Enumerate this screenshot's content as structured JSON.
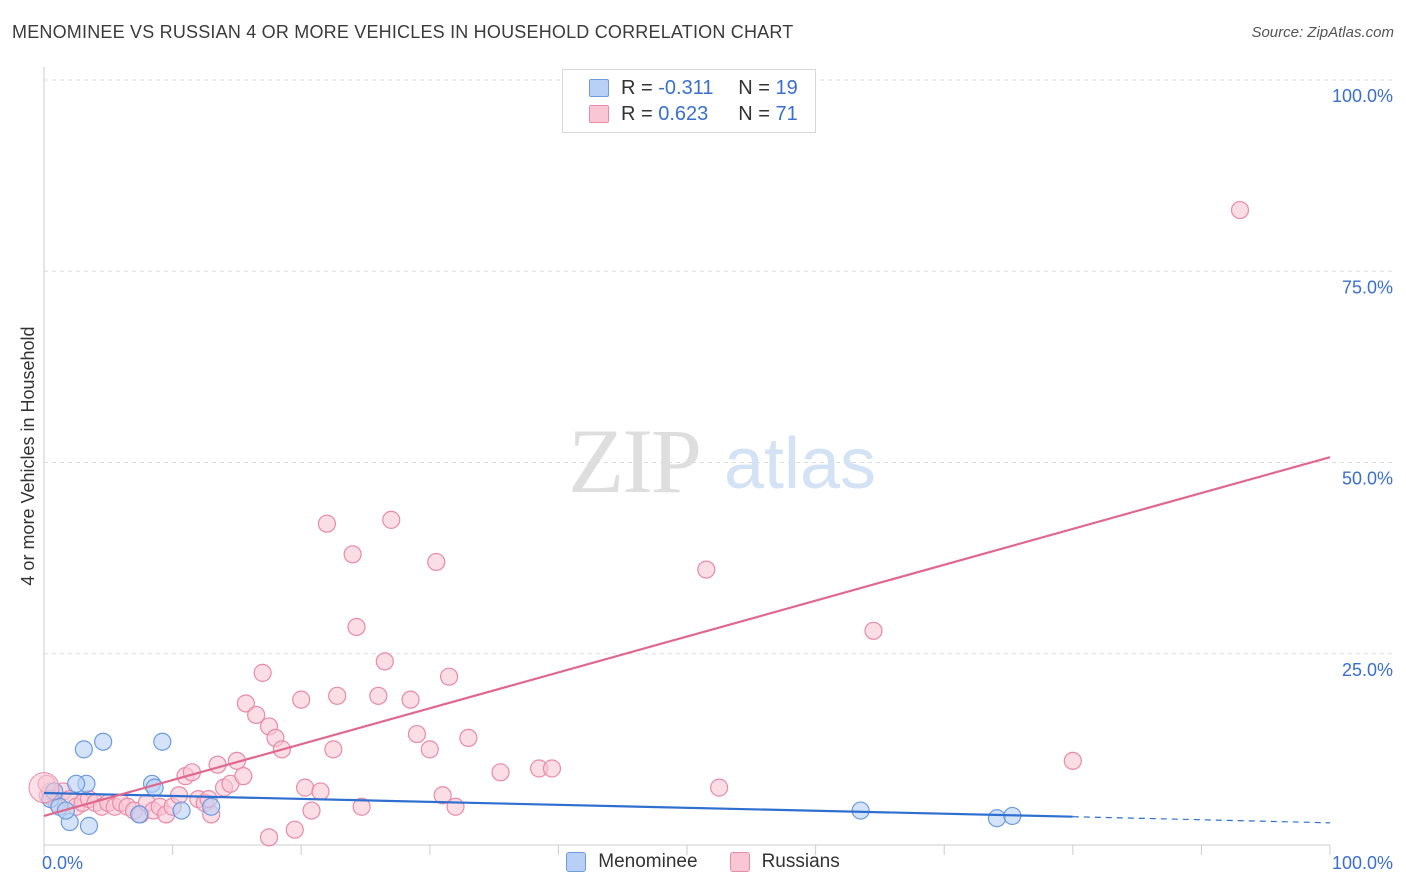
{
  "header": {
    "title": "MENOMINEE VS RUSSIAN 4 OR MORE VEHICLES IN HOUSEHOLD CORRELATION CHART",
    "source": "Source: ZipAtlas.com"
  },
  "watermark": {
    "zip": "ZIP",
    "atlas": "atlas"
  },
  "stats": [
    {
      "r_label": "R =",
      "r_value": "-0.311",
      "n_label": "N =",
      "n_value": "19"
    },
    {
      "r_label": "R =",
      "r_value": "0.623",
      "n_label": "N =",
      "n_value": "71"
    }
  ],
  "colors": {
    "menominee_fill": "#b8d0f5",
    "menominee_stroke": "#6d9be0",
    "menominee_line": "#2f6fcf",
    "russians_fill": "#f9c6d5",
    "russians_stroke": "#e98aa8",
    "russians_line": "#e0688f",
    "tick_label": "#3a6fd0",
    "grid": "#dddddd"
  },
  "chart_data": {
    "type": "scatter",
    "title": "MENOMINEE VS RUSSIAN 4 OR MORE VEHICLES IN HOUSEHOLD CORRELATION CHART",
    "xlabel": "",
    "ylabel": "4 or more Vehicles in Household",
    "xlim": [
      0,
      100
    ],
    "ylim": [
      0,
      100
    ],
    "x_tick_labels": [
      "0.0%",
      "100.0%"
    ],
    "y_tick_labels": [
      "25.0%",
      "50.0%",
      "75.0%",
      "100.0%"
    ],
    "y_ticks": [
      25,
      50,
      75,
      100
    ],
    "grid": "horizontal dashed",
    "legend_position": "top-center",
    "series": [
      {
        "name": "Menominee",
        "points": [
          [
            0.5,
            6.0
          ],
          [
            1.2,
            5.0
          ],
          [
            2.0,
            3.0
          ],
          [
            3.3,
            8.0
          ],
          [
            3.1,
            12.5
          ],
          [
            4.6,
            13.5
          ],
          [
            3.5,
            2.5
          ],
          [
            8.4,
            8.0
          ],
          [
            8.6,
            7.5
          ],
          [
            9.2,
            13.5
          ],
          [
            7.4,
            4.0
          ],
          [
            10.7,
            4.5
          ],
          [
            13.0,
            5.0
          ],
          [
            1.7,
            4.5
          ],
          [
            2.5,
            8.0
          ],
          [
            63.5,
            4.5
          ],
          [
            74.1,
            3.5
          ],
          [
            75.3,
            3.8
          ],
          [
            0.8,
            7.0
          ]
        ],
        "trend": {
          "x": [
            0,
            80
          ],
          "y": [
            6.8,
            3.7
          ],
          "dashed_to": [
            100,
            2.9
          ]
        }
      },
      {
        "name": "Russians",
        "points": [
          [
            0.3,
            6.5
          ],
          [
            0.5,
            7.0
          ],
          [
            1.0,
            5.5
          ],
          [
            1.5,
            7.0
          ],
          [
            2.0,
            6.0
          ],
          [
            2.5,
            5.0
          ],
          [
            3.0,
            5.5
          ],
          [
            3.5,
            6.0
          ],
          [
            4.0,
            5.5
          ],
          [
            4.5,
            5.0
          ],
          [
            5.0,
            5.5
          ],
          [
            5.5,
            5.0
          ],
          [
            6.0,
            5.5
          ],
          [
            6.5,
            5.0
          ],
          [
            7.0,
            4.5
          ],
          [
            7.5,
            4.0
          ],
          [
            8.0,
            5.5
          ],
          [
            8.5,
            4.5
          ],
          [
            9.0,
            5.0
          ],
          [
            9.5,
            4.0
          ],
          [
            10.0,
            5.0
          ],
          [
            10.5,
            6.5
          ],
          [
            11.0,
            9.0
          ],
          [
            11.5,
            9.5
          ],
          [
            12.0,
            6.0
          ],
          [
            12.5,
            5.5
          ],
          [
            13.0,
            4.0
          ],
          [
            13.5,
            10.5
          ],
          [
            14.0,
            7.5
          ],
          [
            14.5,
            8.0
          ],
          [
            15.0,
            11.0
          ],
          [
            15.5,
            9.0
          ],
          [
            15.7,
            18.5
          ],
          [
            16.5,
            17.0
          ],
          [
            17.0,
            22.5
          ],
          [
            17.5,
            15.5
          ],
          [
            18.0,
            14.0
          ],
          [
            18.5,
            12.5
          ],
          [
            17.5,
            1.0
          ],
          [
            19.5,
            2.0
          ],
          [
            20.0,
            19.0
          ],
          [
            20.3,
            7.5
          ],
          [
            20.8,
            4.5
          ],
          [
            21.5,
            7.0
          ],
          [
            22.0,
            42.0
          ],
          [
            22.5,
            12.5
          ],
          [
            22.8,
            19.5
          ],
          [
            24.0,
            38.0
          ],
          [
            24.3,
            28.5
          ],
          [
            24.7,
            5.0
          ],
          [
            26.0,
            19.5
          ],
          [
            26.5,
            24.0
          ],
          [
            27.0,
            42.5
          ],
          [
            28.5,
            19.0
          ],
          [
            29.0,
            14.5
          ],
          [
            30.0,
            12.5
          ],
          [
            30.5,
            37.0
          ],
          [
            31.0,
            6.5
          ],
          [
            31.5,
            22.0
          ],
          [
            32.0,
            5.0
          ],
          [
            33.0,
            14.0
          ],
          [
            35.5,
            9.5
          ],
          [
            38.5,
            10.0
          ],
          [
            39.5,
            10.0
          ],
          [
            51.5,
            36.0
          ],
          [
            52.5,
            7.5
          ],
          [
            64.5,
            28.0
          ],
          [
            80.0,
            11.0
          ],
          [
            93.0,
            83.0
          ],
          [
            12.8,
            6.0
          ],
          [
            0.2,
            8.0
          ]
        ],
        "trend": {
          "x": [
            0,
            100
          ],
          "y": [
            3.8,
            50.7
          ]
        }
      }
    ]
  },
  "legend_bottom": [
    "Menominee",
    "Russians"
  ]
}
